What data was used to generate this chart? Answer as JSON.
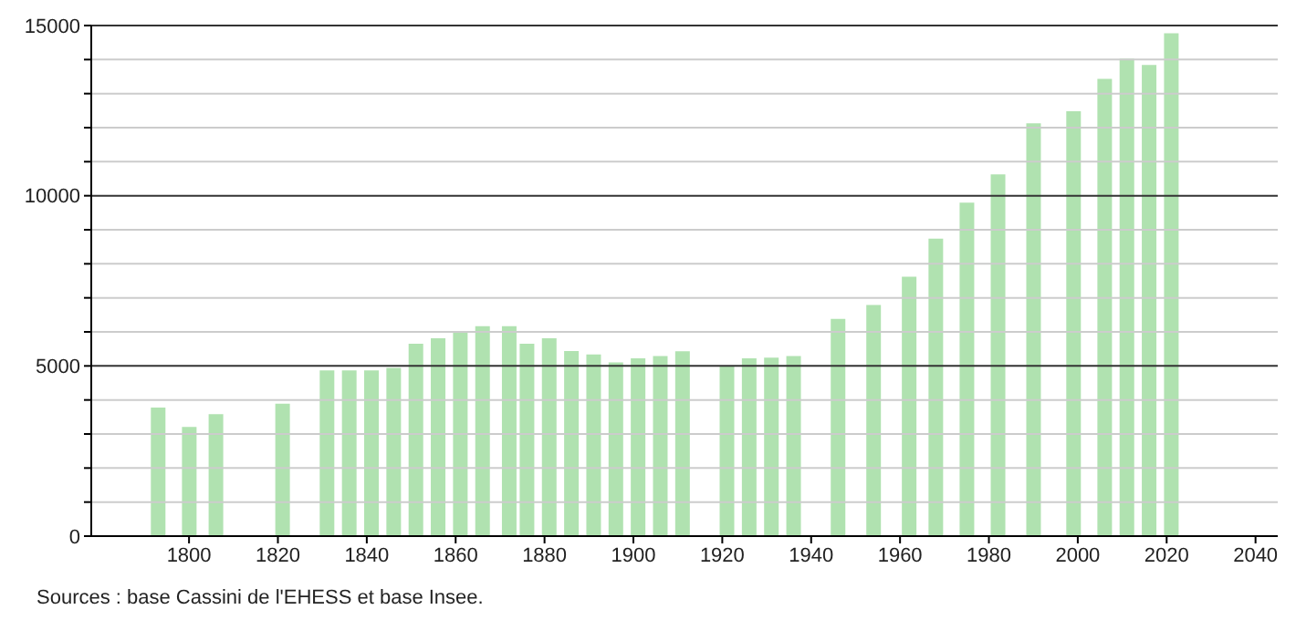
{
  "chart_data": {
    "type": "bar",
    "x": [
      1793,
      1800,
      1806,
      1821,
      1831,
      1836,
      1841,
      1846,
      1851,
      1856,
      1861,
      1866,
      1872,
      1876,
      1881,
      1886,
      1891,
      1896,
      1901,
      1906,
      1911,
      1921,
      1926,
      1931,
      1936,
      1946,
      1954,
      1962,
      1968,
      1975,
      1982,
      1990,
      1999,
      2006,
      2011,
      2016,
      2021
    ],
    "values": [
      3780,
      3210,
      3580,
      3890,
      4870,
      4870,
      4870,
      4940,
      5650,
      5810,
      6000,
      6170,
      6170,
      5650,
      5810,
      5440,
      5340,
      5100,
      5220,
      5290,
      5430,
      4980,
      5220,
      5240,
      5290,
      6380,
      6790,
      7620,
      8740,
      9800,
      10630,
      12130,
      12480,
      13430,
      14030,
      13840,
      14770
    ],
    "color": "#b0e2b0",
    "xlim": [
      1778,
      2045
    ],
    "xticks": [
      1800,
      1820,
      1840,
      1860,
      1880,
      1900,
      1920,
      1940,
      1960,
      1980,
      2000,
      2020,
      2040
    ],
    "ylim": [
      0,
      15000
    ],
    "yticks": [
      0,
      {
        "value": 1000,
        "label": null
      },
      {
        "value": 2000,
        "label": null
      },
      {
        "value": 3000,
        "label": null
      },
      {
        "value": 4000,
        "label": null
      },
      5000,
      {
        "value": 6000,
        "label": null
      },
      {
        "value": 7000,
        "label": null
      },
      {
        "value": 8000,
        "label": null
      },
      {
        "value": 9000,
        "label": null
      },
      10000,
      {
        "value": 11000,
        "label": null
      },
      {
        "value": 12000,
        "label": null
      },
      {
        "value": 13000,
        "label": null
      },
      {
        "value": 14000,
        "label": null
      },
      15000
    ],
    "grid": "y",
    "annotations": [
      "Sources : base Cassini de l'EHESS et base Insee."
    ]
  }
}
